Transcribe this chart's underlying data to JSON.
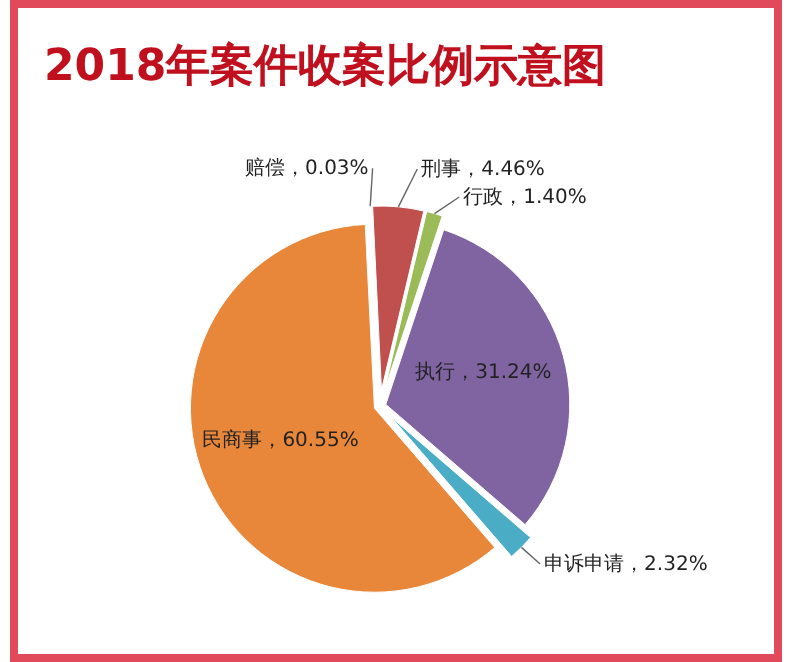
{
  "chart_data": {
    "type": "pie",
    "title": "2018年案件收案比例示意图",
    "categories": [
      "赔偿",
      "刑事",
      "行政",
      "执行",
      "申诉申请",
      "民商事"
    ],
    "values": [
      0.03,
      4.46,
      1.4,
      31.24,
      2.32,
      60.55
    ],
    "colors": [
      "#4f81bd",
      "#c0504d",
      "#9bbb59",
      "#8064a2",
      "#4bacc6",
      "#e8873a"
    ],
    "value_labels": [
      "，0.03%",
      "，4.46%",
      "，1.40%",
      "，31.24%",
      "，2.32%",
      "，60.55%"
    ]
  }
}
